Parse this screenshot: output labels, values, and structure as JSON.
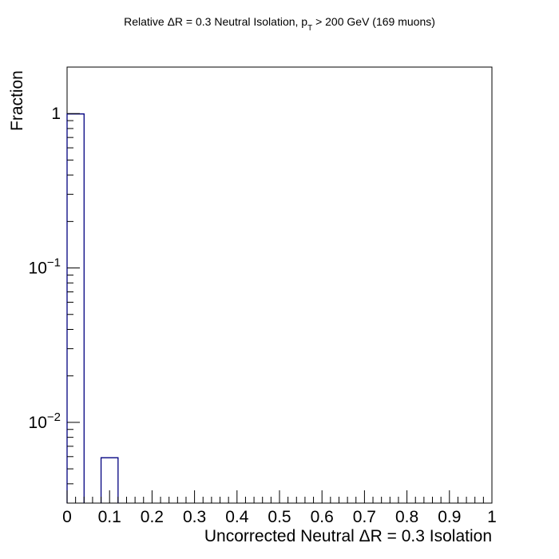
{
  "chart_data": {
    "type": "bar",
    "title": {
      "prefix": "Relative ΔR = 0.3 Neutral Isolation, p",
      "subscript": "T",
      "suffix": " > 200 GeV (169 muons)"
    },
    "xlabel": "Uncorrected Neutral ΔR = 0.3 Isolation",
    "ylabel": "Fraction",
    "xlim": [
      0,
      1
    ],
    "ylim": [
      0.003,
      2
    ],
    "yscale": "log",
    "bin_width": 0.04,
    "bins": [
      {
        "x_low": 0.0,
        "x_high": 0.04,
        "value": 0.994
      },
      {
        "x_low": 0.08,
        "x_high": 0.12,
        "value": 0.0059
      }
    ],
    "x_ticks": [
      {
        "value": 0,
        "label": "0"
      },
      {
        "value": 0.1,
        "label": "0.1"
      },
      {
        "value": 0.2,
        "label": "0.2"
      },
      {
        "value": 0.3,
        "label": "0.3"
      },
      {
        "value": 0.4,
        "label": "0.4"
      },
      {
        "value": 0.5,
        "label": "0.5"
      },
      {
        "value": 0.6,
        "label": "0.6"
      },
      {
        "value": 0.7,
        "label": "0.7"
      },
      {
        "value": 0.8,
        "label": "0.8"
      },
      {
        "value": 0.9,
        "label": "0.9"
      },
      {
        "value": 1,
        "label": "1"
      }
    ],
    "y_ticks": [
      {
        "value": 1,
        "base": "1",
        "exponent": ""
      },
      {
        "value": 0.1,
        "base": "10",
        "exponent": "−1"
      },
      {
        "value": 0.01,
        "base": "10",
        "exponent": "−2"
      }
    ],
    "grid": false,
    "legend": "none",
    "colors": {
      "bar_stroke": "#000080",
      "axis": "#000000",
      "background": "#ffffff"
    }
  }
}
